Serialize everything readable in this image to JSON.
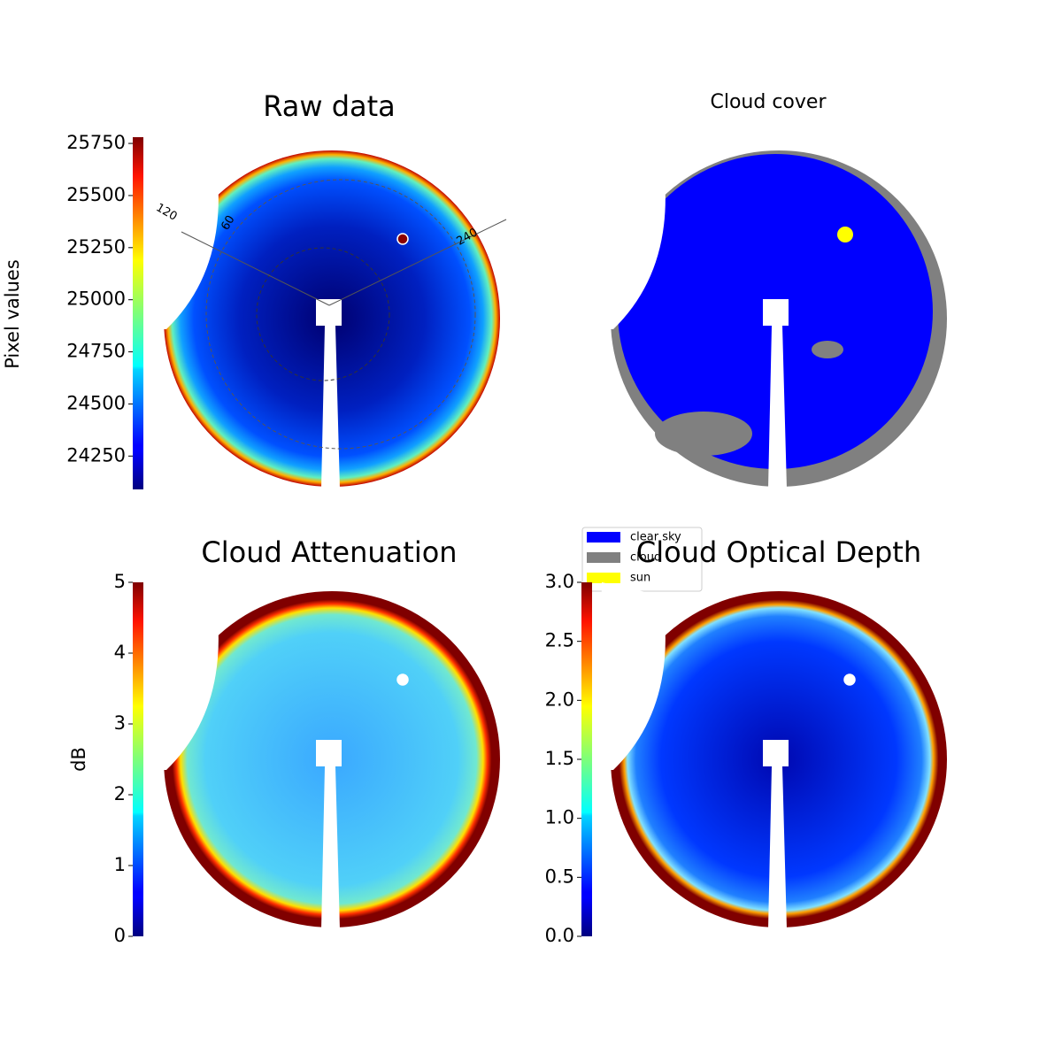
{
  "chart_data": [
    {
      "type": "image",
      "title": "Raw data",
      "colorbar_label": "Pixel values",
      "colormap": "jet",
      "clim": [
        24090,
        25780
      ],
      "cticks": [
        24250,
        24500,
        24750,
        25000,
        25250,
        25500,
        25750
      ],
      "annotations": [
        "120",
        "60",
        "240"
      ]
    },
    {
      "type": "category-image",
      "title": "Cloud cover",
      "legend": [
        {
          "name": "clear sky",
          "color": "#0000ff"
        },
        {
          "name": "cloud",
          "color": "#808080"
        },
        {
          "name": "sun",
          "color": "#ffff00"
        }
      ]
    },
    {
      "type": "image",
      "title": "Cloud Attenuation",
      "colorbar_label": "dB",
      "colormap": "jet",
      "clim": [
        0,
        5
      ],
      "cticks": [
        0,
        1,
        2,
        3,
        4,
        5
      ]
    },
    {
      "type": "image",
      "title": "Cloud Optical Depth",
      "colormap": "jet",
      "clim": [
        0,
        3
      ],
      "cticks": [
        {
          "value": 0,
          "label": "0.0"
        },
        0.5,
        {
          "value": 1,
          "label": "1.0"
        },
        1.5,
        {
          "value": 2,
          "label": "2.0"
        },
        2.5,
        {
          "value": 3,
          "label": "3.0"
        }
      ]
    }
  ]
}
